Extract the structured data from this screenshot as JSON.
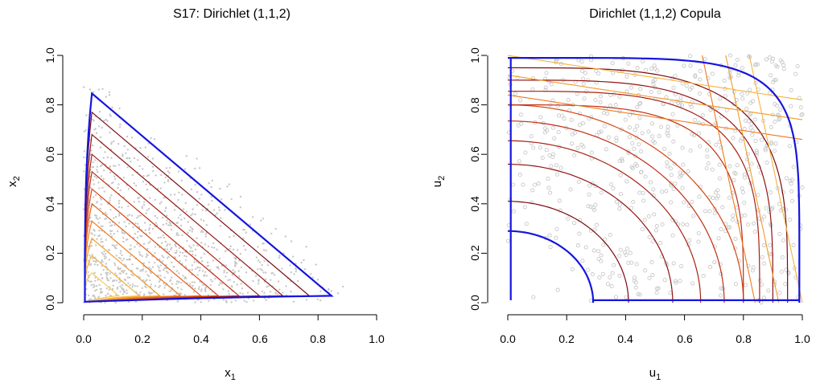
{
  "chart_data": [
    {
      "type": "scatter",
      "subtype": "contour",
      "title": "S17: Dirichlet (1,1,2)",
      "xlabel": {
        "base": "x",
        "sub": "1"
      },
      "ylabel": {
        "base": "x",
        "sub": "2"
      },
      "xlim": [
        0,
        1
      ],
      "ylim": [
        0,
        1
      ],
      "xticks": [
        "0.0",
        "0.2",
        "0.4",
        "0.6",
        "0.8",
        "1.0"
      ],
      "yticks": [
        "0.0",
        "0.2",
        "0.4",
        "0.6",
        "0.8",
        "1.0"
      ],
      "grid": false,
      "legend": "none",
      "point_color": "#c8c8c8",
      "boundary_color": "#1515e0",
      "contour_colors": [
        "#7a0a12",
        "#8e1512",
        "#a82013",
        "#c02d12",
        "#d54512",
        "#e35d16",
        "#ee7a1c",
        "#f29a2a",
        "#f5b43c",
        "#f7c95b"
      ],
      "boundary_level": 0.846,
      "contour_levels": [
        0.77,
        0.68,
        0.6,
        0.53,
        0.46,
        0.4,
        0.33,
        0.26,
        0.19,
        0.12
      ]
    },
    {
      "type": "scatter",
      "subtype": "contour",
      "title": "Dirichlet (1,1,2) Copula",
      "xlabel": {
        "base": "u",
        "sub": "1"
      },
      "ylabel": {
        "base": "u",
        "sub": "2"
      },
      "xlim": [
        0,
        1
      ],
      "ylim": [
        0,
        1
      ],
      "xticks": [
        "0.0",
        "0.2",
        "0.4",
        "0.6",
        "0.8",
        "1.0"
      ],
      "yticks": [
        "0.0",
        "0.2",
        "0.4",
        "0.6",
        "0.8",
        "1.0"
      ],
      "grid": false,
      "legend": "none",
      "point_color": "#c8c8c8",
      "boundary_color": "#1515e0",
      "contour_colors": [
        "#7a0a12",
        "#8e1512",
        "#a82013",
        "#c02d12",
        "#d54512",
        "#e35d16",
        "#ee7a1c",
        "#f29a2a",
        "#f5b43c",
        "#f7c95b"
      ],
      "inner_level_radii": [
        0.41,
        0.56,
        0.655,
        0.735,
        0.8
      ],
      "outer_level_radii": [
        0.95,
        0.9,
        0.855,
        0.8
      ]
    }
  ]
}
